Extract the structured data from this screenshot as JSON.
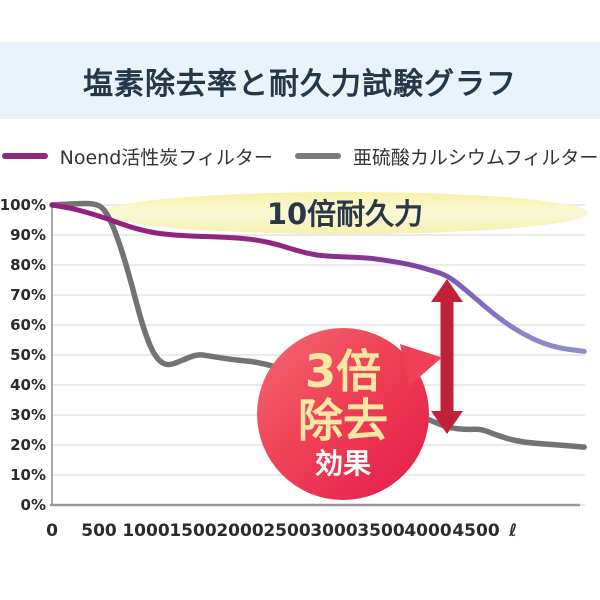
{
  "header": {
    "title": "塩素除去率と耐久力試験グラフ"
  },
  "legend": {
    "items": [
      {
        "label": "Noend活性炭フィルター",
        "color": "#8e2a7e"
      },
      {
        "label": "亜硫酸カルシウムフィルター",
        "color": "#7a7a7a"
      }
    ]
  },
  "annotations": {
    "durability_label": "10倍耐久力",
    "durability_ellipse_color": "#f8f5bd",
    "arrow_color": "#c02038",
    "badge": {
      "line1": "3倍",
      "line2": "除去",
      "line3": "効果",
      "bg_color_top": "#f46a76",
      "bg_color_bottom": "#e51a4a",
      "text_color_yellow": "#f9e8a3",
      "text_color_white": "#ffffff"
    }
  },
  "colors": {
    "banner_bg": "#eaf3f9",
    "banner_text": "#25384a",
    "gridline": "#e3e3e3",
    "axis": "#a8a8a8"
  },
  "chart_data": {
    "type": "line",
    "title": "塩素除去率と耐久力試験グラフ",
    "xlabel": "ℓ",
    "ylabel": "%",
    "xlim": [
      0,
      5650
    ],
    "ylim": [
      0,
      100
    ],
    "grid": "horizontal-only",
    "legend_position": "top",
    "xticks": [
      0,
      500,
      1000,
      1500,
      2000,
      2500,
      3000,
      3500,
      4000,
      4500
    ],
    "xtick_labels": [
      "0",
      "500",
      "1000",
      "1500",
      "2000",
      "2500",
      "3000",
      "3500",
      "4000",
      "4500",
      "ℓ"
    ],
    "ytick_labels": [
      "100%",
      "90%",
      "80%",
      "70%",
      "60%",
      "50%",
      "40%",
      "30%",
      "20%",
      "10%",
      "0%"
    ],
    "series": [
      {
        "name": "亜硫酸カルシウムフィルター",
        "color": "#737373",
        "points": [
          [
            0,
            100
          ],
          [
            250,
            100.5
          ],
          [
            450,
            100.5
          ],
          [
            550,
            99
          ],
          [
            650,
            93
          ],
          [
            750,
            84
          ],
          [
            850,
            73
          ],
          [
            950,
            61
          ],
          [
            1050,
            52
          ],
          [
            1150,
            47.5
          ],
          [
            1250,
            46.5
          ],
          [
            1400,
            48.5
          ],
          [
            1550,
            50.3
          ],
          [
            1700,
            49.5
          ],
          [
            1950,
            48.3
          ],
          [
            2200,
            47.6
          ],
          [
            2600,
            44
          ],
          [
            3000,
            39
          ],
          [
            3400,
            34
          ],
          [
            3800,
            31
          ],
          [
            4000,
            28.5
          ],
          [
            4200,
            25.8
          ],
          [
            4400,
            25.1
          ],
          [
            4550,
            25.4
          ],
          [
            4700,
            23.5
          ],
          [
            4900,
            21.5
          ],
          [
            5100,
            20.6
          ],
          [
            5400,
            20
          ],
          [
            5650,
            19.3
          ]
        ]
      },
      {
        "name": "Noend活性炭フィルター",
        "gradient": [
          {
            "offset": 0,
            "color": "#941f7c"
          },
          {
            "offset": 0.5,
            "color": "#8d2a85"
          },
          {
            "offset": 0.68,
            "color": "#7b44a2"
          },
          {
            "offset": 0.78,
            "color": "#7f63b8"
          },
          {
            "offset": 0.88,
            "color": "#8b84c9"
          },
          {
            "offset": 1,
            "color": "#8f8cca"
          }
        ],
        "points": [
          [
            0,
            100
          ],
          [
            200,
            99
          ],
          [
            400,
            97.3
          ],
          [
            600,
            95.3
          ],
          [
            800,
            93
          ],
          [
            1000,
            91.2
          ],
          [
            1200,
            90.2
          ],
          [
            1400,
            89.8
          ],
          [
            1600,
            89.5
          ],
          [
            1800,
            89.3
          ],
          [
            2000,
            89
          ],
          [
            2200,
            88.2
          ],
          [
            2400,
            86.8
          ],
          [
            2600,
            84.8
          ],
          [
            2800,
            83.3
          ],
          [
            3000,
            82.8
          ],
          [
            3200,
            82.6
          ],
          [
            3400,
            82.2
          ],
          [
            3600,
            81.3
          ],
          [
            3800,
            80.2
          ],
          [
            4000,
            78.5
          ],
          [
            4200,
            76.5
          ],
          [
            4400,
            71.5
          ],
          [
            4600,
            66
          ],
          [
            4800,
            61
          ],
          [
            5000,
            57
          ],
          [
            5200,
            54
          ],
          [
            5400,
            52.2
          ],
          [
            5650,
            51.2
          ]
        ]
      }
    ],
    "comparison_arrow": {
      "x_liters": 4190,
      "top_percent": 76,
      "bottom_percent": 25
    }
  }
}
